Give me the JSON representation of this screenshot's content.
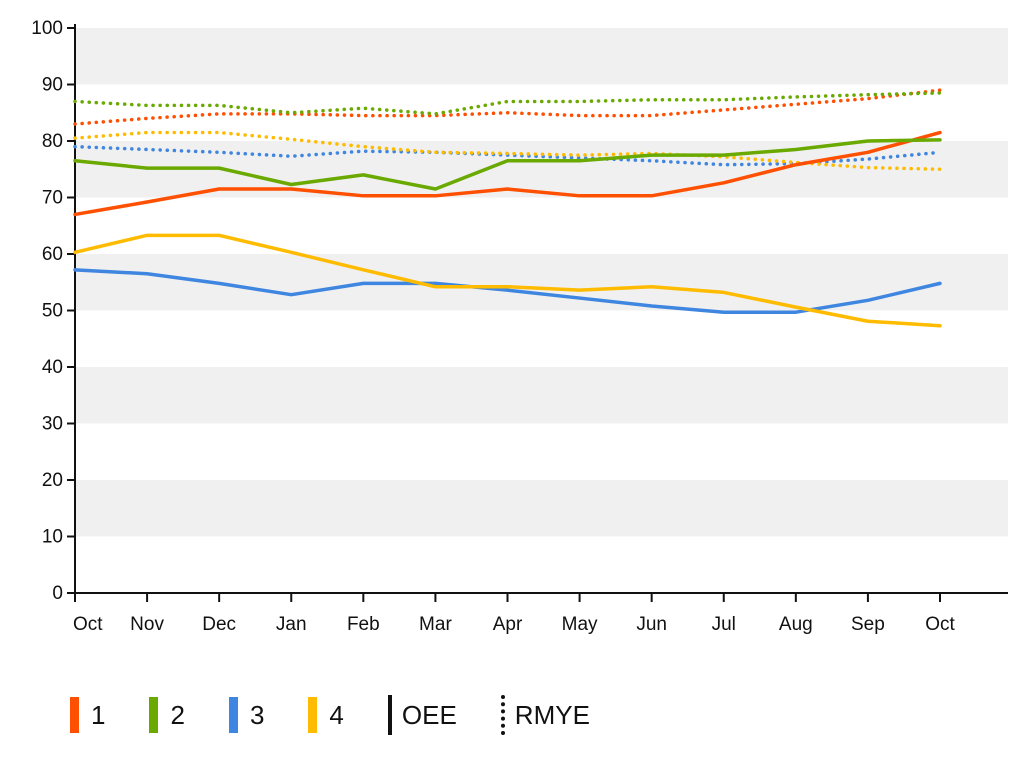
{
  "chart_data": {
    "type": "line",
    "title": "",
    "xlabel": "",
    "ylabel": "",
    "categories": [
      "Oct",
      "Nov",
      "Dec",
      "Jan",
      "Feb",
      "Mar",
      "Apr",
      "May",
      "Jun",
      "Jul",
      "Aug",
      "Sep",
      "Oct"
    ],
    "ylim": [
      0,
      100
    ],
    "yticks": [
      0,
      10,
      20,
      30,
      40,
      50,
      60,
      70,
      80,
      90,
      100
    ],
    "grid": "alternating horizontal bands",
    "legend_position": "bottom",
    "series": [
      {
        "name": "1",
        "color": "#ff4f00",
        "style": "OEE",
        "values": [
          67,
          69.2,
          71.5,
          71.5,
          70.3,
          70.3,
          71.5,
          70.3,
          70.3,
          72.6,
          75.8,
          78,
          81.5
        ]
      },
      {
        "name": "2",
        "color": "#6aa900",
        "style": "OEE",
        "values": [
          76.5,
          75.2,
          75.2,
          72.3,
          74,
          71.5,
          76.5,
          76.5,
          77.5,
          77.5,
          78.5,
          80,
          80.2
        ]
      },
      {
        "name": "3",
        "color": "#3f86e0",
        "style": "OEE",
        "values": [
          57.2,
          56.5,
          54.8,
          52.8,
          54.8,
          54.8,
          53.6,
          52.2,
          50.8,
          49.7,
          49.7,
          51.8,
          54.8
        ]
      },
      {
        "name": "4",
        "color": "#ffbb00",
        "style": "OEE",
        "values": [
          60.3,
          63.3,
          63.3,
          60.3,
          57.2,
          54.2,
          54.2,
          53.6,
          54.2,
          53.2,
          50.6,
          48.1,
          47.3
        ]
      },
      {
        "name": "1",
        "color": "#ff4f00",
        "style": "RMYE",
        "values": [
          83,
          84,
          84.8,
          84.8,
          84.5,
          84.5,
          85,
          84.5,
          84.5,
          85.5,
          86.5,
          87.5,
          89
        ]
      },
      {
        "name": "2",
        "color": "#6aa900",
        "style": "RMYE",
        "values": [
          87,
          86.3,
          86.3,
          85,
          85.8,
          84.8,
          87,
          87,
          87.3,
          87.3,
          87.8,
          88.2,
          88.5
        ]
      },
      {
        "name": "3",
        "color": "#3f86e0",
        "style": "RMYE",
        "values": [
          79,
          78.5,
          78,
          77.3,
          78.2,
          78,
          77.5,
          77,
          76.5,
          75.8,
          76,
          76.8,
          78
        ]
      },
      {
        "name": "4",
        "color": "#ffbb00",
        "style": "RMYE",
        "values": [
          80.5,
          81.5,
          81.5,
          80.3,
          79,
          78,
          77.8,
          77.5,
          77.8,
          77.2,
          76.2,
          75.3,
          75
        ]
      }
    ]
  },
  "legend": {
    "items": [
      {
        "label": "1",
        "color": "#ff4f00"
      },
      {
        "label": "2",
        "color": "#6aa900"
      },
      {
        "label": "3",
        "color": "#3f86e0"
      },
      {
        "label": "4",
        "color": "#ffbb00"
      }
    ],
    "styles": [
      {
        "label": "OEE",
        "kind": "solid"
      },
      {
        "label": "RMYE",
        "kind": "dotted"
      }
    ]
  }
}
